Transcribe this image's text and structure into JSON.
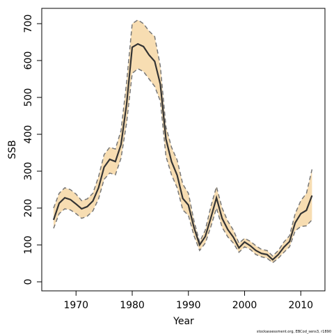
{
  "chart_data": {
    "type": "line",
    "xlabel": "Year",
    "ylabel": "SSB",
    "footnote": "stockassessment.org, EBCod_sens3, r1890",
    "x": [
      1966,
      1967,
      1968,
      1969,
      1970,
      1971,
      1972,
      1973,
      1974,
      1975,
      1976,
      1977,
      1978,
      1979,
      1980,
      1981,
      1982,
      1983,
      1984,
      1985,
      1986,
      1987,
      1988,
      1989,
      1990,
      1991,
      1992,
      1993,
      1994,
      1995,
      1996,
      1997,
      1998,
      1999,
      2000,
      2001,
      2002,
      2003,
      2004,
      2005,
      2006,
      2007,
      2008,
      2009,
      2010,
      2011,
      2012
    ],
    "values": [
      168,
      213,
      228,
      223,
      211,
      198,
      204,
      219,
      255,
      311,
      332,
      326,
      372,
      481,
      636,
      645,
      638,
      615,
      598,
      536,
      387,
      326,
      289,
      226,
      208,
      147,
      100,
      123,
      174,
      228,
      172,
      142,
      121,
      92,
      108,
      98,
      85,
      77,
      74,
      60,
      74,
      94,
      109,
      160,
      185,
      194,
      234
    ],
    "upper": [
      200,
      240,
      255,
      250,
      238,
      220,
      225,
      240,
      285,
      345,
      365,
      360,
      410,
      540,
      700,
      710,
      700,
      680,
      665,
      585,
      420,
      365,
      330,
      265,
      240,
      165,
      108,
      140,
      205,
      258,
      200,
      165,
      140,
      105,
      118,
      110,
      98,
      88,
      85,
      70,
      85,
      108,
      125,
      185,
      220,
      240,
      305
    ],
    "lower": [
      145,
      185,
      198,
      195,
      185,
      172,
      178,
      192,
      225,
      278,
      295,
      290,
      335,
      430,
      565,
      578,
      570,
      550,
      530,
      490,
      340,
      290,
      255,
      195,
      180,
      125,
      85,
      105,
      150,
      200,
      148,
      122,
      105,
      80,
      95,
      88,
      74,
      68,
      64,
      52,
      64,
      80,
      95,
      138,
      150,
      152,
      168
    ],
    "color": "#333333",
    "band_color": "#f7ddb2",
    "band_edge_color": "#777777",
    "xlim": [
      1963.9,
      2014.3
    ],
    "ylim": [
      -24.5,
      741.5
    ],
    "xticks": [
      1970,
      1980,
      1990,
      2000,
      2010
    ],
    "yticks": [
      0,
      100,
      200,
      300,
      400,
      500,
      600,
      700
    ]
  }
}
